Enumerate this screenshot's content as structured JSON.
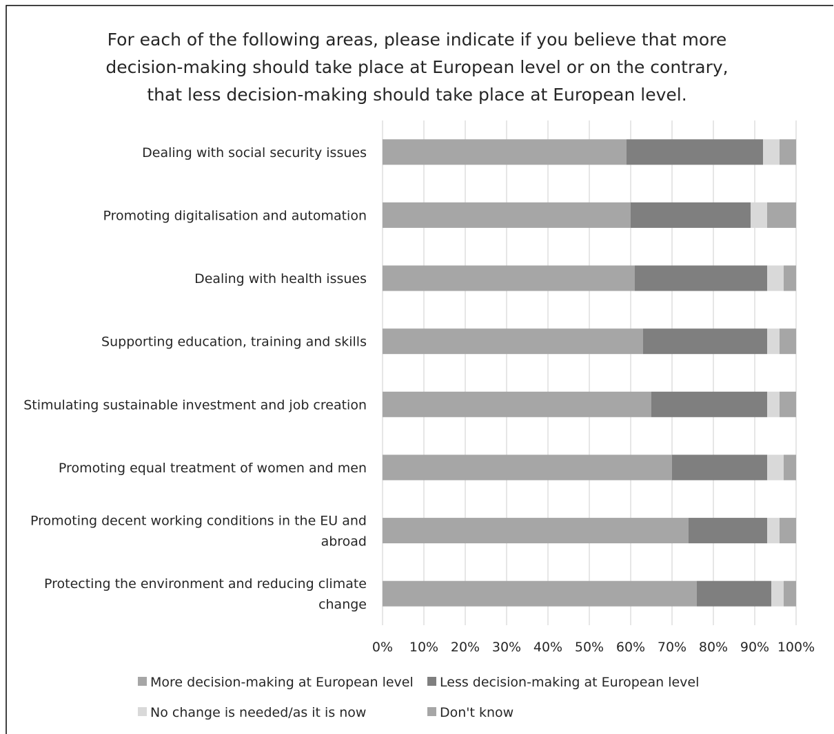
{
  "chart_data": {
    "type": "bar",
    "orientation": "horizontal",
    "stacked": "percent",
    "title": "For each of the following areas, please indicate if you believe that more decision-making should take place at European level or on the contrary, that less decision-making should take place at European level.",
    "title_lines": [
      "For each of the following areas, please indicate if you believe that more",
      "decision-making should take place at European level or on the contrary,",
      "that less decision-making should take place at European level."
    ],
    "categories": [
      "Dealing with social security issues",
      "Promoting digitalisation and automation",
      "Dealing with health issues",
      "Supporting education, training and skills",
      "Stimulating sustainable investment and job creation",
      "Promoting equal treatment of women and men",
      "Promoting decent working conditions in the EU and abroad",
      "Protecting the environment and reducing climate change"
    ],
    "category_lines": [
      [
        "Dealing with social security issues"
      ],
      [
        "Promoting digitalisation and automation"
      ],
      [
        "Dealing with health issues"
      ],
      [
        "Supporting education, training and skills"
      ],
      [
        "Stimulating sustainable investment and job creation"
      ],
      [
        "Promoting equal treatment of women and men"
      ],
      [
        "Promoting decent working conditions in the EU and",
        "abroad"
      ],
      [
        "Protecting the environment and reducing climate",
        "change"
      ]
    ],
    "series": [
      {
        "name": "More decision-making at European level",
        "color": "#a6a6a6",
        "values": [
          59,
          60,
          61,
          63,
          65,
          70,
          74,
          76
        ]
      },
      {
        "name": "Less decision-making at European level",
        "color": "#7f7f7f",
        "values": [
          33,
          29,
          32,
          30,
          28,
          23,
          19,
          18
        ]
      },
      {
        "name": "No change is needed/as it is now",
        "color": "#d9d9d9",
        "values": [
          4,
          4,
          4,
          3,
          3,
          4,
          3,
          3
        ]
      },
      {
        "name": "Don't know",
        "color": "#a6a6a6",
        "values": [
          4,
          7,
          3,
          4,
          4,
          3,
          4,
          3
        ]
      }
    ],
    "xlim": [
      0,
      100
    ],
    "x_ticks": [
      "0%",
      "10%",
      "20%",
      "30%",
      "40%",
      "50%",
      "60%",
      "70%",
      "80%",
      "90%",
      "100%"
    ],
    "grid": true,
    "legend_position": "bottom"
  }
}
